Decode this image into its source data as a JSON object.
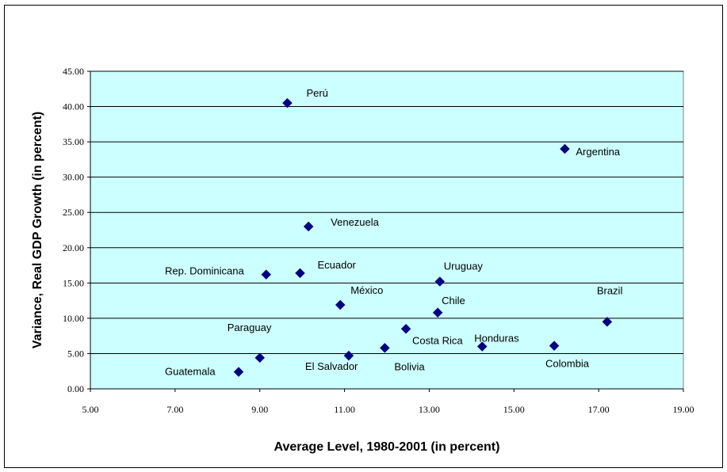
{
  "chart_data": {
    "type": "scatter",
    "title": "",
    "xlabel": "Average Level, 1980-2001 (in percent)",
    "ylabel": "Variance, Real GDP Growth (in percent)",
    "xlim": [
      5,
      19
    ],
    "ylim": [
      0,
      45
    ],
    "x_ticks": [
      "5.00",
      "7.00",
      "9.00",
      "11.00",
      "13.00",
      "15.00",
      "17.00",
      "19.00"
    ],
    "y_ticks": [
      "0.00",
      "5.00",
      "10.00",
      "15.00",
      "20.00",
      "25.00",
      "30.00",
      "35.00",
      "40.00",
      "45.00"
    ],
    "grid": "horizontal",
    "plot_background": "#ccffff",
    "marker_color": "#000080",
    "points": [
      {
        "label": "Perú",
        "x": 9.65,
        "y": 40.5
      },
      {
        "label": "Argentina",
        "x": 16.2,
        "y": 34.0
      },
      {
        "label": "Venezuela",
        "x": 10.15,
        "y": 23.0
      },
      {
        "label": "Rep. Dominicana",
        "x": 9.15,
        "y": 16.2
      },
      {
        "label": "Ecuador",
        "x": 9.95,
        "y": 16.4
      },
      {
        "label": "Uruguay",
        "x": 13.25,
        "y": 15.2
      },
      {
        "label": "México",
        "x": 10.9,
        "y": 11.9
      },
      {
        "label": "Chile",
        "x": 13.2,
        "y": 10.8
      },
      {
        "label": "Brazil",
        "x": 17.2,
        "y": 9.5
      },
      {
        "label": "Paraguay",
        "x": 9.0,
        "y": 4.4
      },
      {
        "label": "Costa Rica",
        "x": 12.45,
        "y": 8.5
      },
      {
        "label": "Honduras",
        "x": 14.25,
        "y": 6.0
      },
      {
        "label": "Colombia",
        "x": 15.95,
        "y": 6.1
      },
      {
        "label": "El Salvador",
        "x": 11.1,
        "y": 4.7
      },
      {
        "label": "Bolivia",
        "x": 11.95,
        "y": 5.8
      },
      {
        "label": "Guatemala",
        "x": 8.5,
        "y": 2.4
      }
    ]
  }
}
